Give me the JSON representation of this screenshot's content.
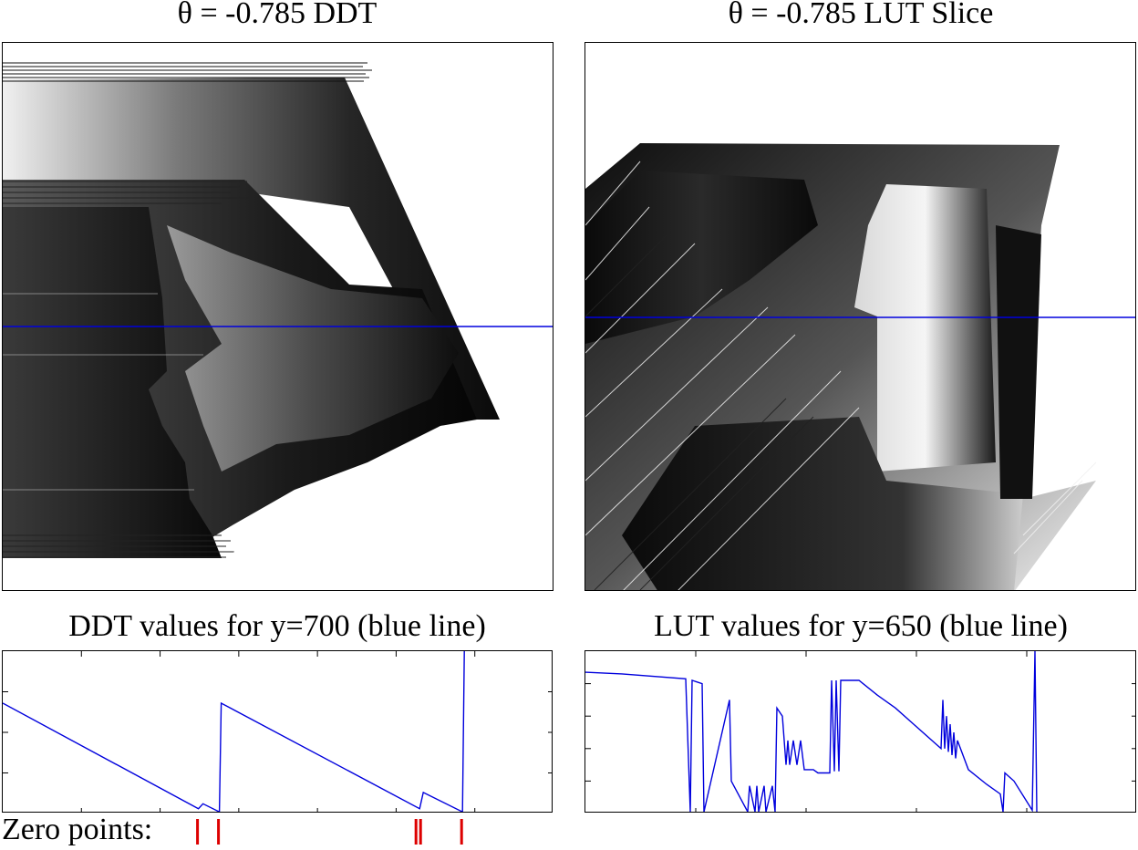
{
  "titles": {
    "ddt_image": "θ = -0.785 DDT",
    "lut_image": "θ = -0.785 LUT Slice",
    "ddt_plot": "DDT values for y=700 (blue line)",
    "lut_plot": "LUT values for y=650 (blue line)",
    "zero_points": "Zero points:"
  },
  "colors": {
    "line": "#0000dd",
    "zero_marker": "#dd0000",
    "frame": "#000000"
  },
  "chart_data": [
    {
      "type": "line",
      "name": "ddt_profile",
      "title": "DDT values for y=700 (blue line)",
      "x": [
        0,
        215,
        220,
        238,
        240,
        458,
        462,
        505,
        507
      ],
      "y": [
        0.68,
        0.03,
        0.06,
        0.01,
        0.68,
        0.03,
        0.13,
        0.01,
        1.0
      ],
      "xlim": [
        0,
        605
      ],
      "ylim": [
        0,
        1
      ],
      "x_ticks": 7,
      "y_ticks": 4
    },
    {
      "type": "line",
      "name": "lut_profile",
      "title": "LUT values for y=650 (blue line)",
      "x": [
        0,
        40,
        110,
        115,
        117,
        128,
        130,
        158,
        160,
        178,
        180,
        186,
        188,
        190,
        196,
        198,
        205,
        208,
        210,
        216,
        220,
        222,
        224,
        228,
        232,
        236,
        240,
        245,
        250,
        255,
        260,
        268,
        270,
        273,
        275,
        278,
        280,
        290,
        300,
        320,
        340,
        360,
        380,
        390,
        392,
        394,
        396,
        398,
        400,
        402,
        404,
        406,
        408,
        420,
        440,
        455,
        458,
        460,
        470,
        490,
        493,
        495
      ],
      "y": [
        0.87,
        0.86,
        0.83,
        0.01,
        0.82,
        0.8,
        0.01,
        0.7,
        0.2,
        0.01,
        0.17,
        0.01,
        0.17,
        0.01,
        0.17,
        0.01,
        0.17,
        0.01,
        0.65,
        0.6,
        0.3,
        0.45,
        0.3,
        0.45,
        0.3,
        0.45,
        0.27,
        0.27,
        0.27,
        0.25,
        0.25,
        0.25,
        0.82,
        0.26,
        0.82,
        0.26,
        0.82,
        0.82,
        0.82,
        0.73,
        0.65,
        0.55,
        0.45,
        0.4,
        0.7,
        0.4,
        0.6,
        0.38,
        0.55,
        0.36,
        0.5,
        0.34,
        0.45,
        0.27,
        0.18,
        0.12,
        0.01,
        0.25,
        0.2,
        0.02,
        1.0,
        0.01
      ],
      "xlim": [
        0,
        605
      ],
      "ylim": [
        0,
        1
      ],
      "x_ticks": 5,
      "y_ticks": 5
    }
  ],
  "zero_points": [
    215,
    238,
    455,
    460,
    505
  ]
}
